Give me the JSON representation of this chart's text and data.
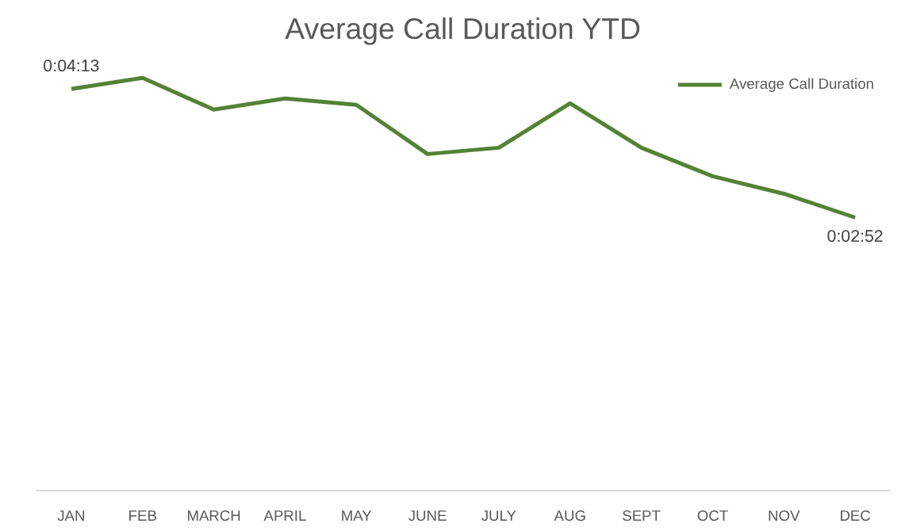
{
  "chart_data": {
    "type": "line",
    "title": "Average Call Duration YTD",
    "categories": [
      "JAN",
      "FEB",
      "MARCH",
      "APRIL",
      "MAY",
      "JUNE",
      "JULY",
      "AUG",
      "SEPT",
      "OCT",
      "NOV",
      "DEC"
    ],
    "series": [
      {
        "name": "Average Call Duration",
        "color": "#548235",
        "values": [
          253,
          260,
          240,
          247,
          243,
          212,
          216,
          244,
          216,
          198,
          187,
          172
        ],
        "value_labels": [
          "0:04:13",
          null,
          null,
          null,
          null,
          null,
          null,
          null,
          null,
          null,
          null,
          "0:02:52"
        ]
      }
    ],
    "tick_labels": "x",
    "grid": false,
    "legend": "top right",
    "marker": "none",
    "line_style": "solid"
  }
}
